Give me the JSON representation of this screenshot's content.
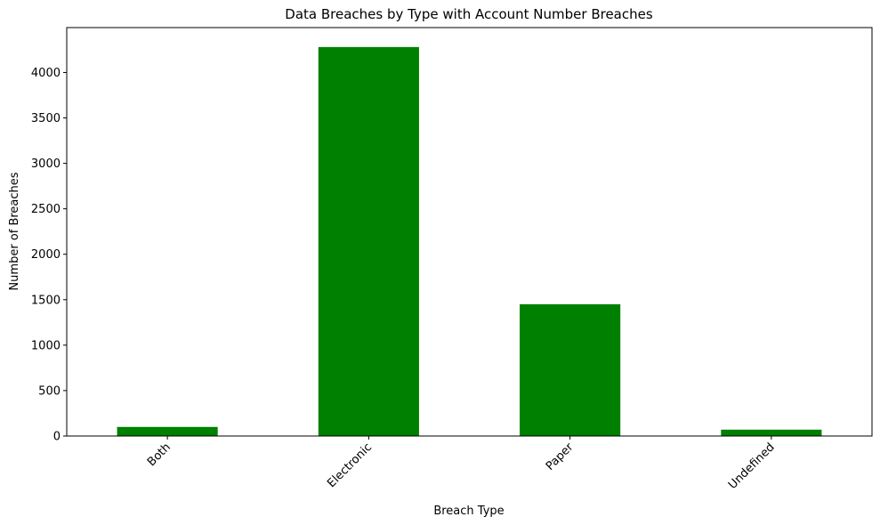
{
  "chart_data": {
    "type": "bar",
    "title": "Data Breaches by Type with Account Number Breaches",
    "xlabel": "Breach Type",
    "ylabel": "Number of Breaches",
    "categories": [
      "Both",
      "Electronic",
      "Paper",
      "Undefined"
    ],
    "values": [
      100,
      4280,
      1450,
      70
    ],
    "ylim": [
      0,
      4494
    ],
    "yticks": [
      0,
      500,
      1000,
      1500,
      2000,
      2500,
      3000,
      3500,
      4000
    ],
    "ytick_labels": [
      "0",
      "500",
      "1000",
      "1500",
      "2000",
      "2500",
      "3000",
      "3500",
      "4000"
    ],
    "bar_color": "#008000",
    "xtick_rotation_deg": 45,
    "grid": false,
    "legend": "none"
  }
}
